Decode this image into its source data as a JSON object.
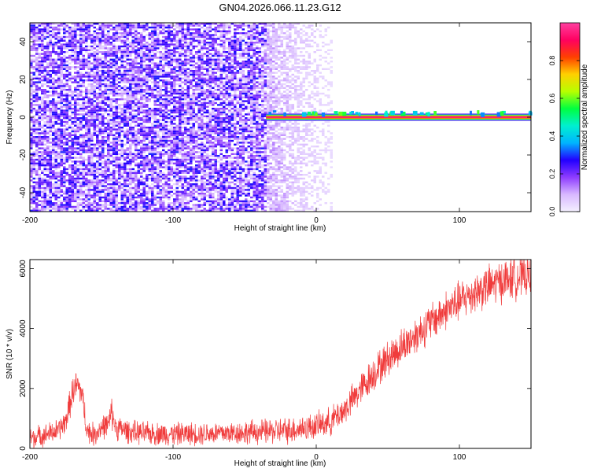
{
  "figure": {
    "title": "GN04.2026.066.11.23.G12"
  },
  "chart_data": [
    {
      "type": "heatmap",
      "title": "GN04.2026.066.11.23.G12",
      "xlabel": "Height of straight line (km)",
      "ylabel": "Frequency (Hz)",
      "xlim": [
        -200,
        150
      ],
      "ylim": [
        -50,
        50
      ],
      "x_ticks": [
        -200,
        -100,
        0,
        100
      ],
      "y_ticks": [
        -40,
        -20,
        0,
        20,
        40
      ],
      "description_regions": [
        {
          "x_range": [
            -200,
            -35
          ],
          "y_range": [
            -50,
            50
          ],
          "amplitude": 0.15,
          "pattern": "broadband noise"
        },
        {
          "x_range": [
            -35,
            10
          ],
          "y_range": [
            -50,
            50
          ],
          "amplitude": 0.05,
          "pattern": "fading noise"
        },
        {
          "x_range": [
            -35,
            150
          ],
          "y_range": [
            -1,
            1
          ],
          "amplitude": 0.95,
          "pattern": "narrow carrier line near 0 Hz"
        }
      ],
      "colorbar": {
        "label": "Normalized spectral amplitude",
        "range": [
          0.0,
          1.0
        ],
        "ticks": [
          0.0,
          0.2,
          0.4,
          0.6,
          0.8
        ],
        "colors": [
          "#f4f0ff",
          "#d8b8ff",
          "#8e3cff",
          "#2200ff",
          "#00b4ff",
          "#00f0d0",
          "#00ff40",
          "#b8ff00",
          "#ffd000",
          "#ff4000",
          "#ff0060",
          "#ff40a0"
        ]
      },
      "grid": false
    },
    {
      "type": "line",
      "xlabel": "Height of straight line (km)",
      "ylabel": "SNR (10 * v/v)",
      "xlim": [
        -200,
        150
      ],
      "ylim": [
        0,
        6300
      ],
      "x_ticks": [
        -200,
        -100,
        0,
        100
      ],
      "y_ticks": [
        0,
        2000,
        4000,
        6000
      ],
      "color": "#f03c3c",
      "grid": false,
      "series": [
        {
          "x": [
            -200,
            -190,
            -180,
            -175,
            -170,
            -167,
            -164,
            -160,
            -155,
            -150,
            -145,
            -143,
            -140,
            -130,
            -120,
            -100,
            -80,
            -60,
            -40,
            -20,
            0,
            10,
            20,
            30,
            40,
            50,
            60,
            70,
            80,
            90,
            100,
            110,
            120,
            130,
            140,
            150
          ],
          "y_center": [
            350,
            450,
            600,
            900,
            1900,
            2100,
            1900,
            600,
            450,
            700,
            800,
            1200,
            700,
            550,
            500,
            480,
            500,
            520,
            550,
            600,
            750,
            900,
            1300,
            1900,
            2500,
            3000,
            3400,
            3800,
            4200,
            4600,
            4900,
            5200,
            5400,
            5600,
            5700,
            5800
          ],
          "y_spread": [
            600,
            600,
            650,
            700,
            900,
            900,
            900,
            700,
            650,
            700,
            700,
            900,
            700,
            650,
            650,
            650,
            650,
            650,
            700,
            750,
            750,
            800,
            850,
            900,
            1000,
            1000,
            1050,
            1050,
            1100,
            1100,
            1150,
            1150,
            1200,
            1200,
            1200,
            1200
          ]
        }
      ]
    }
  ]
}
